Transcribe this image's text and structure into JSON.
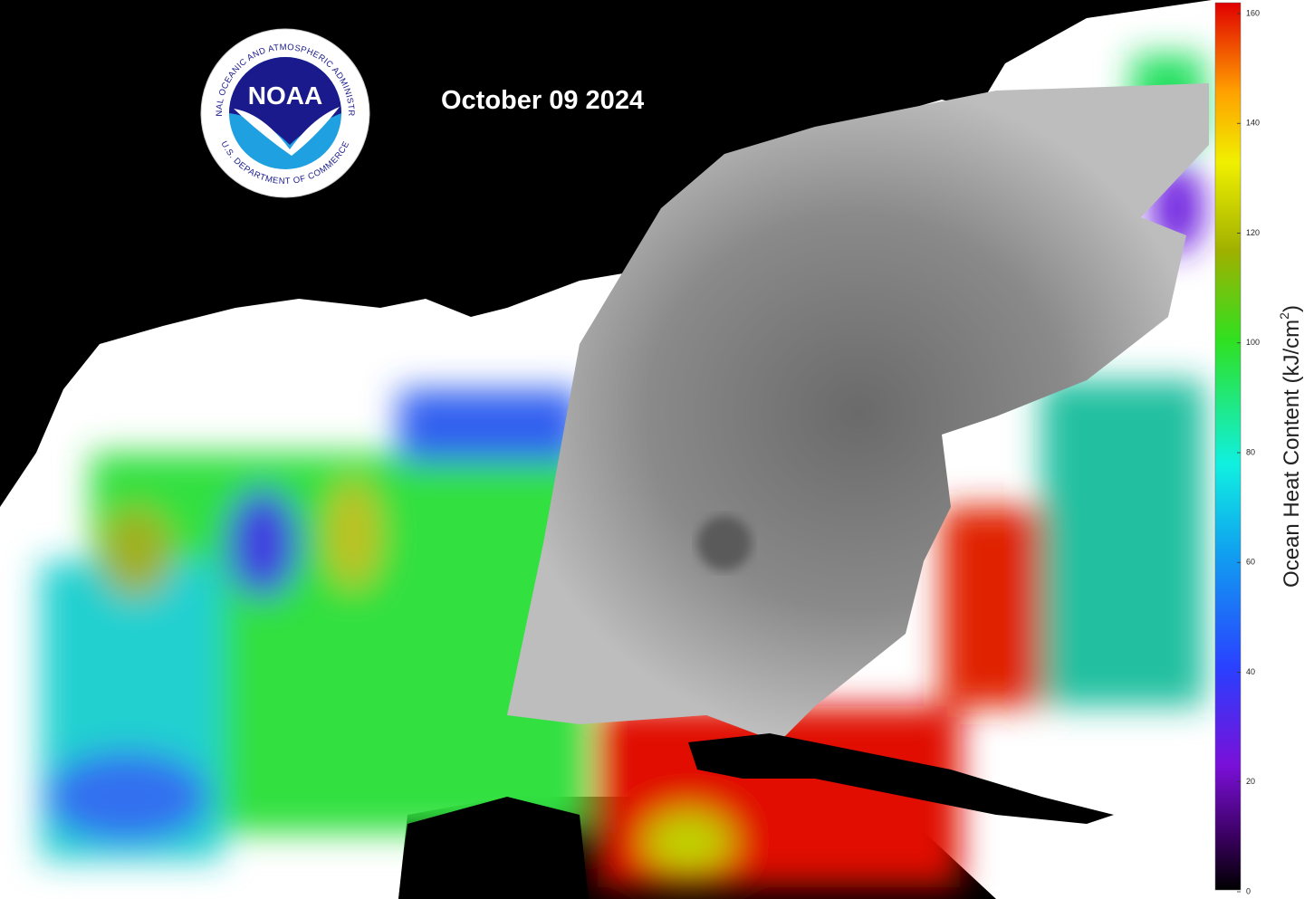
{
  "map": {
    "date": "October 09 2024",
    "logo": {
      "acronym": "NOAA",
      "ring_top": "NATIONAL OCEANIC AND ATMOSPHERIC ADMINISTRATION",
      "ring_bottom": "U.S. DEPARTMENT OF COMMERCE"
    },
    "colorbar": {
      "label": "Ocean Heat Content (kJ/cm",
      "label_superscript": "2",
      "label_close": ")",
      "lim": [
        0,
        160
      ],
      "ticks": [
        0,
        20,
        40,
        60,
        80,
        100,
        120,
        140,
        160
      ]
    }
  }
}
